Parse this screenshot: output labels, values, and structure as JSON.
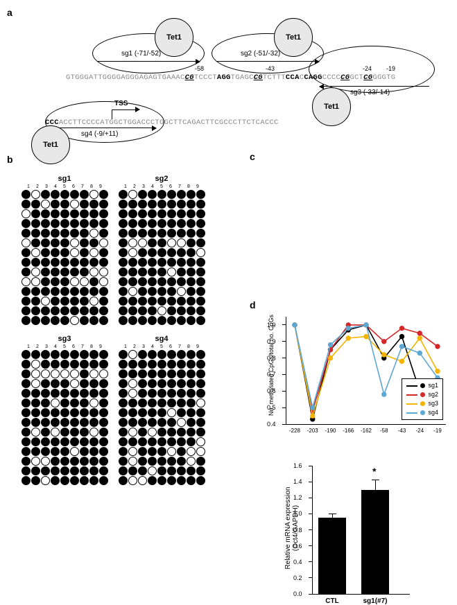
{
  "labels": {
    "a": "a",
    "b": "b",
    "c": "c",
    "d": "d"
  },
  "panel_a": {
    "tet_label": "Tet1",
    "tss_label": "TSS",
    "sg1": {
      "name": "sg1 (-71/-52)"
    },
    "sg2": {
      "name": "sg2 (-51/-32)"
    },
    "sg3": {
      "name": "sg3 (-33/-14)"
    },
    "sg4": {
      "name": "sg4 (-9/+11)"
    },
    "pos": {
      "m58": "-58",
      "m43": "-43",
      "m24": "-24",
      "m19": "-19"
    },
    "seq_line1_pre": "GTGGGATTGGGGAGGGAGAGTGAAAC",
    "seq_line1_mid": "TCCCT",
    "seq_line1_agg": "AGG",
    "seq_line1_mid2": "TGAGC",
    "seq_line1_mid3": "TCTTT",
    "seq_line1_cca": "CCA",
    "seq_line1_cagg": "CAGG",
    "seq_line1_mid4": "CCCC",
    "seq_line1_mid5": "GCT",
    "seq_line1_end": "GGGTG",
    "seq_line2_ccc": "CCC",
    "seq_line2": "ACCTTCCCCATGGCTGGACCCTGGCTTCAGACTTCGCCCTTCTCACCC"
  },
  "panel_b": {
    "columns": [
      "1",
      "2",
      "3",
      "4",
      "5",
      "6",
      "7",
      "8",
      "9"
    ],
    "grids": {
      "sg1": [
        "FOFFFFFOF",
        "FFOFFOFFF",
        "OFFFFFFFF",
        "FFFFFFFFF",
        "FFFFFFFOF",
        "OFFFFOFFO",
        "FOFFFOFOF",
        "FFFFFFFFF",
        "FOFFFFFOO",
        "OOFFFOOFO",
        "FFFFFFFFF",
        "FFOFFFFOF",
        "FFFFFFFFF",
        "FFFFFOFFF"
      ],
      "sg2": [
        "FOFFFFFFF",
        "FFFFFFFFF",
        "FFFFFFFFF",
        "FFFFFFFFF",
        "FFFFFFFFF",
        "FOOFFOOFF",
        "FOFFFFFFO",
        "FFFFFFFFF",
        "FFFFFOFFF",
        "FFFFFFFFF",
        "FOFFFFOFF",
        "FFFFFFFFF",
        "FFFFOFFFF",
        "FFFFFFFFF"
      ],
      "sg3": [
        "FFFFFFFFF",
        "FOFFFFFFF",
        "FOOOOOFOO",
        "FOFFFOFFF",
        "FFFFFFFFF",
        "FFFOFFFOF",
        "FFFFFFFFF",
        "FFFFFFFFF",
        "FOFOFFFOF",
        "FFFFFFFFF",
        "FFFFFOFFF",
        "FOOFFFFFF",
        "FFFFFFFFF",
        "FFOFFFFFF"
      ],
      "sg4": [
        "FOFFFFFFF",
        "FFFFFFFFF",
        "FFFFFFFFF",
        "FOFFFFFFF",
        "FOFFFFFFF",
        "FFFFFFFFO",
        "FFFFFOFFF",
        "FFFFFFOFF",
        "FOFOFFFFF",
        "FFFFFFFFO",
        "FOFFFOFOO",
        "FOFFFFFOF",
        "FFFOFFFFF",
        "FOOFFFFFF"
      ]
    }
  },
  "panel_c": {
    "type": "line",
    "ylim": [
      0.4,
      1.05
    ],
    "yticks": [
      0.4,
      0.5,
      0.6,
      0.7,
      0.8,
      0.9,
      1.0
    ],
    "xcats": [
      "-228",
      "-203",
      "-190",
      "-166",
      "-162",
      "-58",
      "-43",
      "-24",
      "-19"
    ],
    "ylabel": "No. methylated CpGs/total no. CpGs",
    "series": {
      "sg1": {
        "color": "#000000",
        "values": [
          1.0,
          0.43,
          0.85,
          0.97,
          1.0,
          0.8,
          0.93,
          0.6,
          0.62
        ]
      },
      "sg2": {
        "color": "#d62728",
        "values": [
          1.0,
          0.48,
          0.85,
          1.0,
          1.0,
          0.9,
          0.98,
          0.95,
          0.87
        ]
      },
      "sg3": {
        "color": "#f4b400",
        "values": [
          1.0,
          0.45,
          0.8,
          0.92,
          0.93,
          0.82,
          0.78,
          0.92,
          0.72
        ]
      },
      "sg4": {
        "color": "#5da7d3",
        "values": [
          1.0,
          0.5,
          0.88,
          0.98,
          1.0,
          0.58,
          0.87,
          0.83,
          0.68
        ]
      }
    },
    "legend": [
      "sg1",
      "sg2",
      "sg3",
      "sg4"
    ]
  },
  "panel_d": {
    "type": "bar",
    "ylim": [
      0,
      1.6
    ],
    "yticks": [
      0,
      0.2,
      0.4,
      0.6,
      0.8,
      1.0,
      1.2,
      1.4,
      1.6
    ],
    "ylabel": "Relative mRNA expression\n(Oct4/GAPDH)",
    "bars": [
      {
        "label": "CTL",
        "value": 0.95,
        "err": 0.05
      },
      {
        "label": "sg1(#7)",
        "value": 1.3,
        "err": 0.13,
        "sig": "*"
      }
    ],
    "bar_color": "#000000"
  }
}
